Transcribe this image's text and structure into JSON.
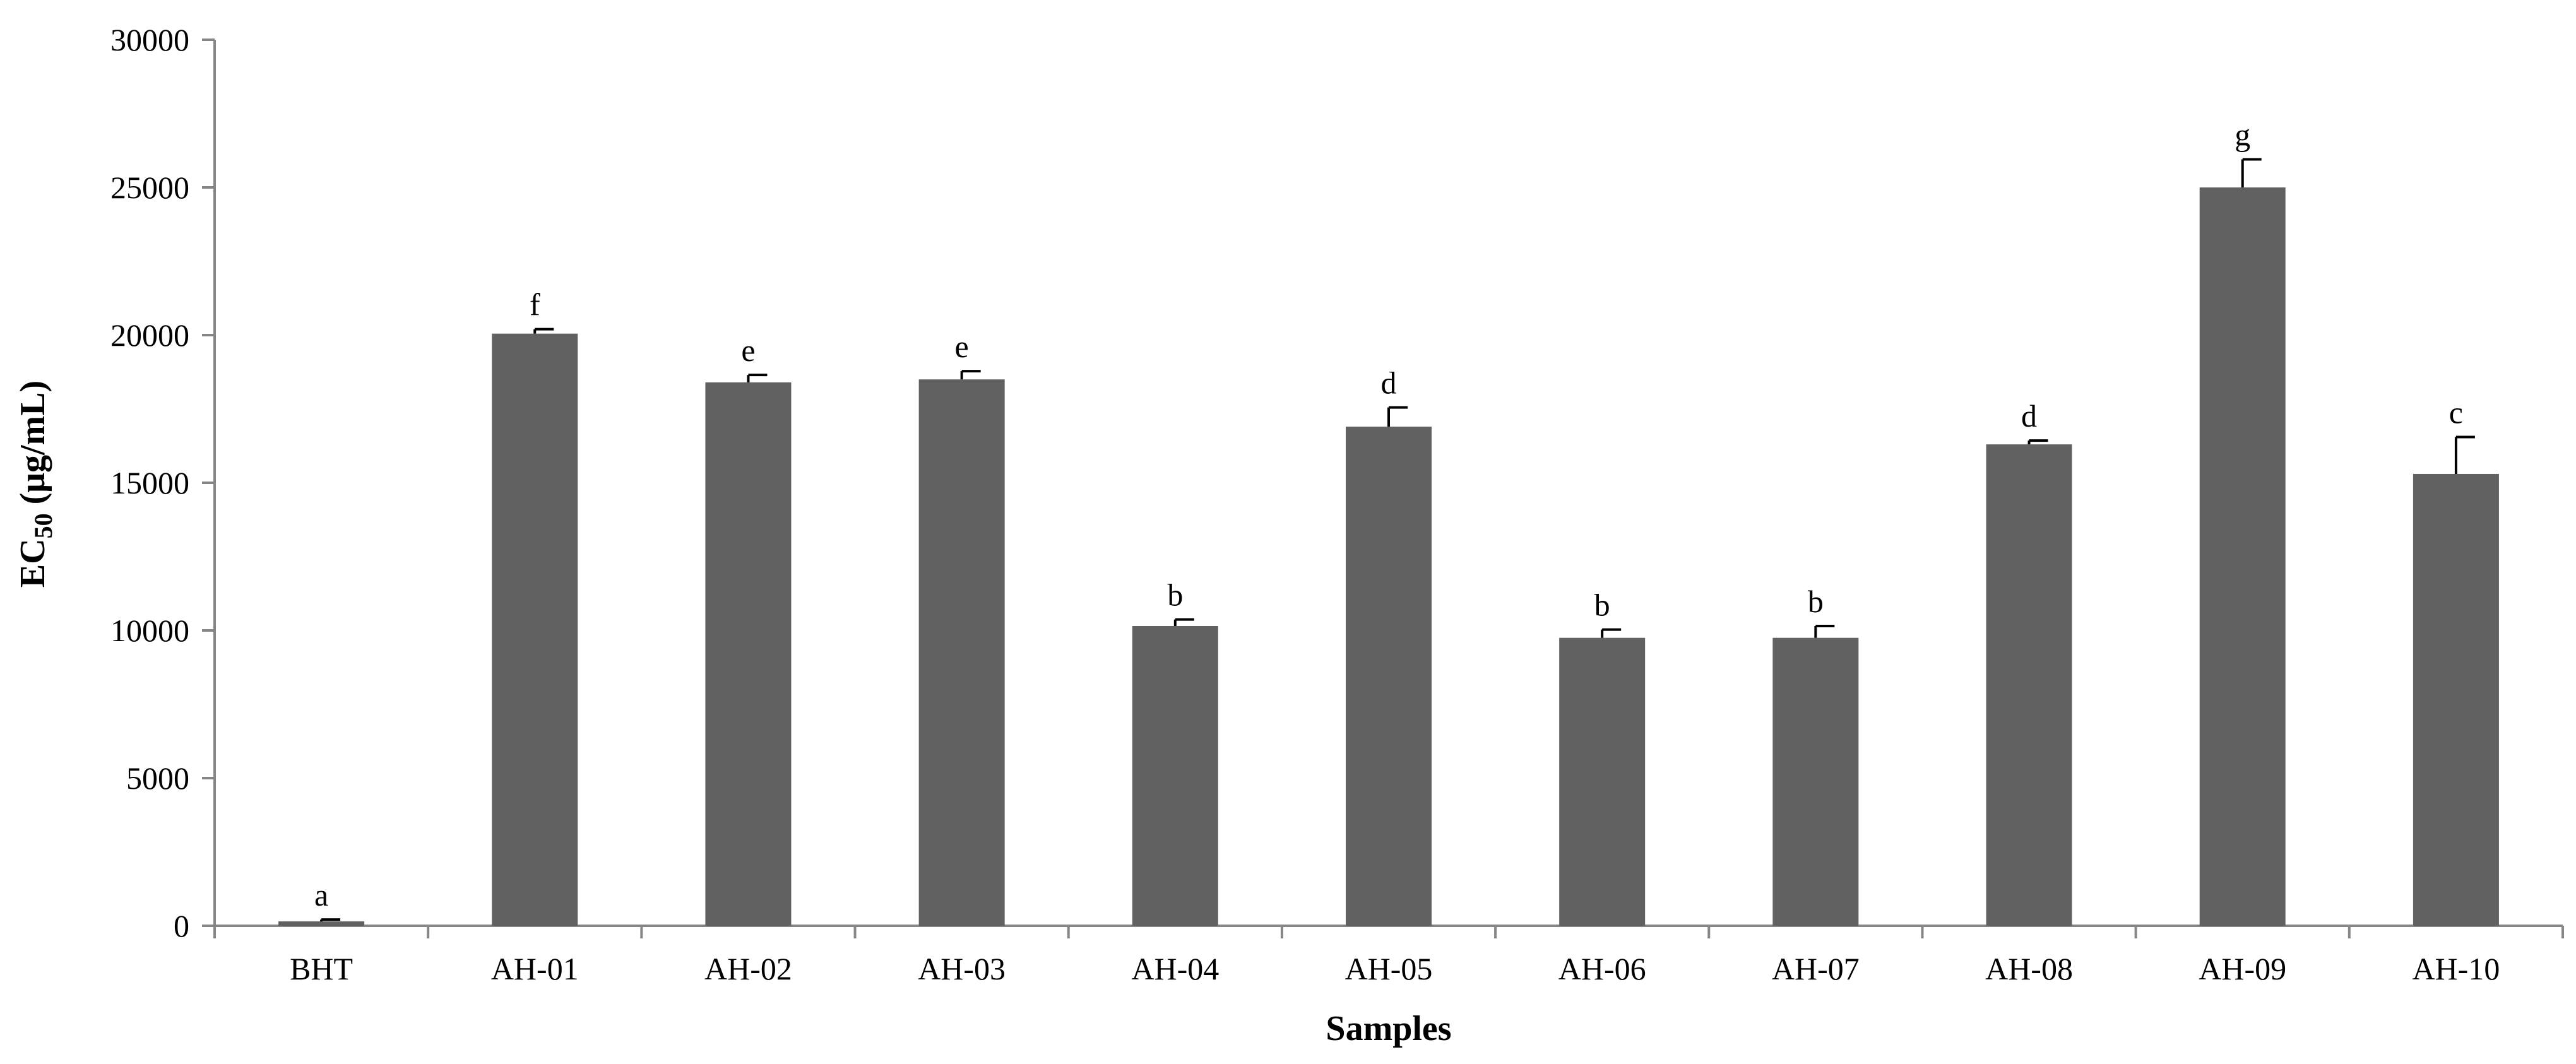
{
  "chart_data": {
    "type": "bar",
    "title": "",
    "xlabel": "Samples",
    "ylabel": {
      "main": "EC",
      "subscript": "50",
      "unit": " (μg/mL)"
    },
    "ylim": [
      0,
      30000
    ],
    "yticks": [
      0,
      5000,
      10000,
      15000,
      20000,
      25000,
      30000
    ],
    "grid": false,
    "legend": "none",
    "bar_color": "#616161",
    "categories": [
      "BHT",
      "AH-01",
      "AH-02",
      "AH-03",
      "AH-04",
      "AH-05",
      "AH-06",
      "AH-07",
      "AH-08",
      "AH-09",
      "AH-10"
    ],
    "values": [
      150,
      20050,
      18400,
      18500,
      10150,
      16900,
      9750,
      9750,
      16300,
      25000,
      15300
    ],
    "errors": [
      60,
      150,
      250,
      280,
      220,
      650,
      280,
      400,
      130,
      950,
      1250
    ],
    "significance_letters": [
      "a",
      "f",
      "e",
      "e",
      "b",
      "d",
      "b",
      "b",
      "d",
      "g",
      "c"
    ]
  }
}
